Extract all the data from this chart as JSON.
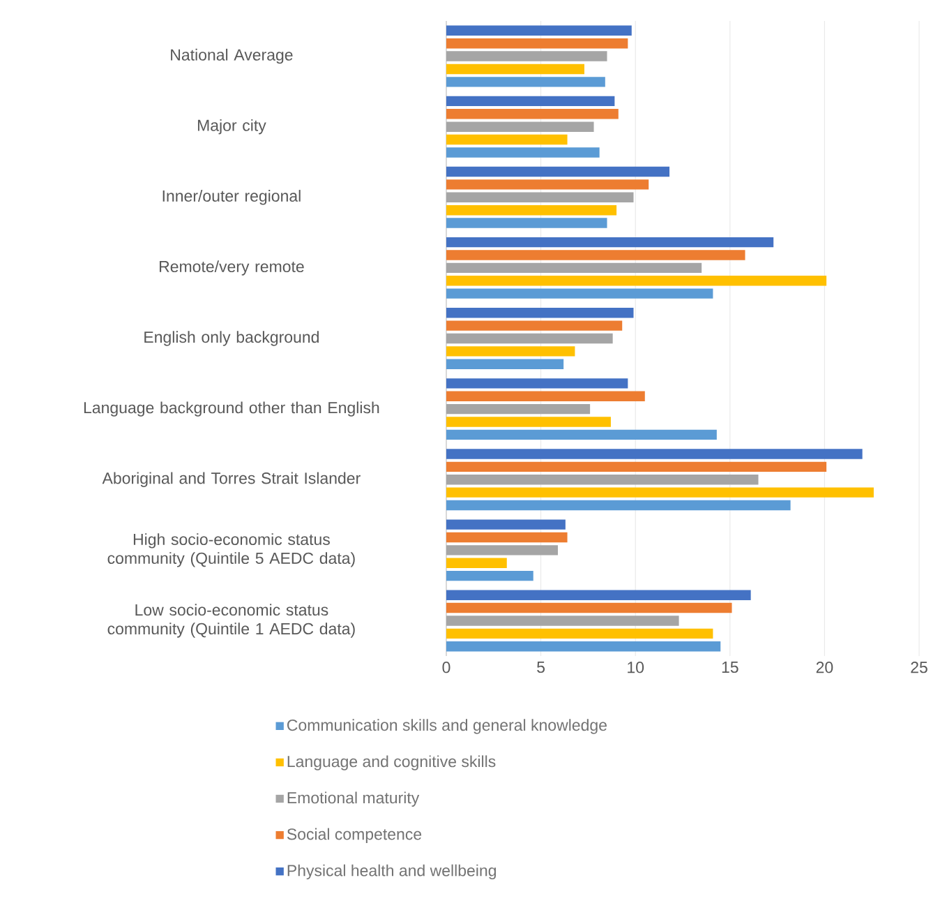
{
  "chart_data": {
    "type": "bar",
    "orientation": "horizontal",
    "categories": [
      "National Average",
      "Major city",
      "Inner/outer regional",
      "Remote/very remote",
      "English only background",
      "Language background other than English",
      "Aboriginal and Torres Strait Islander",
      "High socio-economic status community (Quintile 5 AEDC data)",
      "Low socio-economic status community (Quintile 1 AEDC data)"
    ],
    "series": [
      {
        "name": "Communication skills and general knowledge",
        "color": "#5b9bd5",
        "values": [
          8.4,
          8.1,
          8.5,
          14.1,
          6.2,
          14.3,
          18.2,
          4.6,
          14.5
        ]
      },
      {
        "name": "Language and cognitive skills",
        "color": "#ffc000",
        "values": [
          7.3,
          6.4,
          9.0,
          20.1,
          6.8,
          8.7,
          22.6,
          3.2,
          14.1
        ]
      },
      {
        "name": "Emotional maturity",
        "color": "#a5a5a5",
        "values": [
          8.5,
          7.8,
          9.9,
          13.5,
          8.8,
          7.6,
          16.5,
          5.9,
          12.3
        ]
      },
      {
        "name": "Social competence",
        "color": "#ed7d31",
        "values": [
          9.6,
          9.1,
          10.7,
          15.8,
          9.3,
          10.5,
          20.1,
          6.4,
          15.1
        ]
      },
      {
        "name": "Physical health and wellbeing",
        "color": "#4472c4",
        "values": [
          9.8,
          8.9,
          11.8,
          17.3,
          9.9,
          9.6,
          22.0,
          6.3,
          16.1
        ]
      }
    ],
    "xlim": [
      0,
      25
    ],
    "xticks": [
      0,
      5,
      10,
      15,
      20,
      25
    ],
    "grid": "x",
    "legend": "bottom"
  }
}
